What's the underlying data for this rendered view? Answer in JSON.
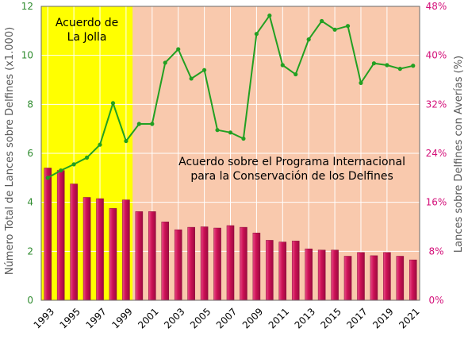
{
  "chart_data": {
    "type": "bar+line",
    "categories": [
      "1993",
      "1994",
      "1995",
      "1996",
      "1997",
      "1998",
      "1999",
      "2000",
      "2001",
      "2002",
      "2003",
      "2004",
      "2005",
      "2006",
      "2007",
      "2008",
      "2009",
      "2010",
      "2011",
      "2012",
      "2013",
      "2014",
      "2015",
      "2016",
      "2017",
      "2018",
      "2019",
      "2020",
      "2021"
    ],
    "x_tick_labels": [
      "1993",
      "1995",
      "1997",
      "1999",
      "2001",
      "2003",
      "2005",
      "2007",
      "2009",
      "2011",
      "2013",
      "2015",
      "2017",
      "2019",
      "2021"
    ],
    "bar_series": {
      "axis": "left",
      "values": [
        5.4,
        5.3,
        4.75,
        4.2,
        4.15,
        3.75,
        4.1,
        3.62,
        3.62,
        3.2,
        2.88,
        2.98,
        3.0,
        2.95,
        3.05,
        2.98,
        2.75,
        2.45,
        2.38,
        2.42,
        2.1,
        2.05,
        2.05,
        1.8,
        1.95,
        1.82,
        1.95,
        1.8,
        1.65
      ]
    },
    "line_series": {
      "axis": "right",
      "values": [
        20.0,
        21.2,
        22.2,
        23.3,
        25.4,
        32.2,
        26.0,
        28.8,
        28.8,
        38.8,
        41.0,
        36.2,
        37.6,
        27.8,
        27.4,
        26.4,
        43.5,
        46.5,
        38.4,
        36.9,
        42.6,
        45.6,
        44.2,
        44.8,
        35.5,
        38.7,
        38.4,
        37.8,
        38.3
      ]
    },
    "ylabel_left": "Número Total de Lances sobre Delfines (x1.000)",
    "ylabel_right": "Lances sobre Delfines con Averías (%)",
    "ylim_left": [
      0,
      12
    ],
    "ylim_right": [
      0,
      48
    ],
    "yticks_left": [
      "0",
      "2",
      "4",
      "6",
      "8",
      "10",
      "12"
    ],
    "yticks_right": [
      "0%",
      "8%",
      "16%",
      "24%",
      "32%",
      "40%",
      "48%"
    ],
    "annotations": [
      {
        "lines": [
          "Acuerdo de",
          "La Jolla"
        ]
      },
      {
        "lines": [
          "Acuerdo sobre el Programa Internacional",
          "para la Conservación de los Delfines"
        ]
      }
    ],
    "period_split_year": "1999",
    "colors": {
      "bars": "#cc1155",
      "line": "#22a022",
      "left_axis": "#2e8b2e",
      "right_axis": "#d4107a",
      "region_la_jolla": "#ffff00",
      "region_aidcp": "#f9c9ad",
      "grid": "#ffffff"
    },
    "grid": true
  }
}
